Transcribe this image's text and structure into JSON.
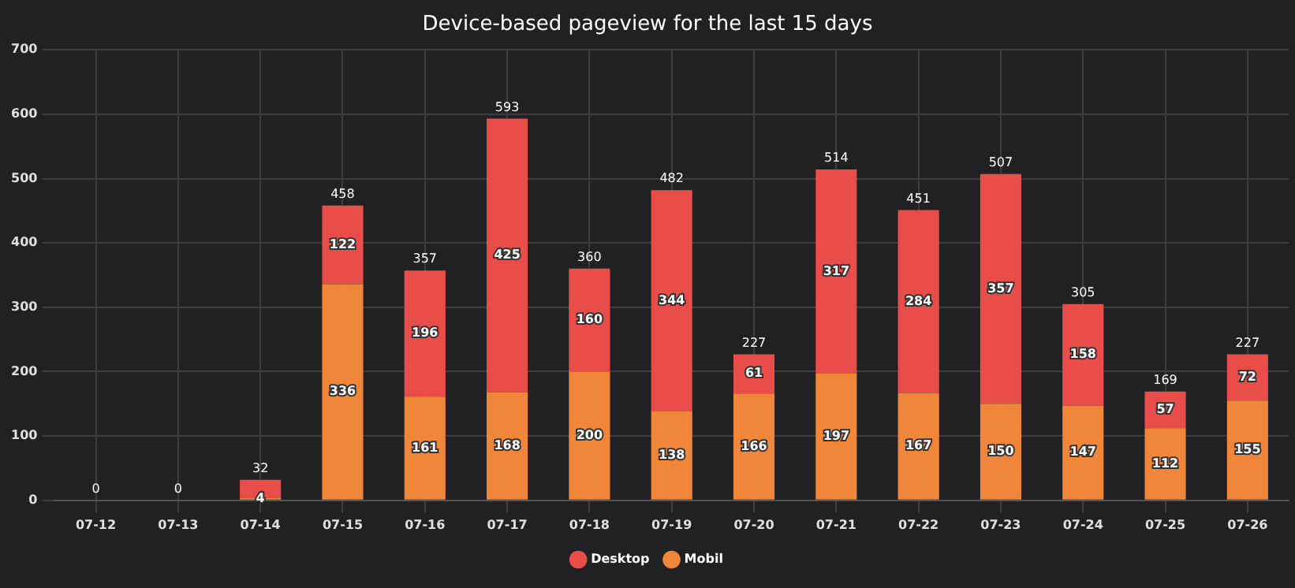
{
  "chart_data": {
    "type": "bar",
    "title": "Device-based pageview for the last 15 days",
    "stacked": true,
    "categories": [
      "07-12",
      "07-13",
      "07-14",
      "07-15",
      "07-16",
      "07-17",
      "07-18",
      "07-19",
      "07-20",
      "07-21",
      "07-22",
      "07-23",
      "07-24",
      "07-25",
      "07-26"
    ],
    "series": [
      {
        "name": "Mobil",
        "color": "#f0863a",
        "values": [
          0,
          0,
          4,
          336,
          161,
          168,
          200,
          138,
          166,
          197,
          167,
          150,
          147,
          112,
          155
        ],
        "value_labels": [
          null,
          null,
          "4",
          "336",
          "161",
          "168",
          "200",
          "138",
          "166",
          "197",
          "167",
          "150",
          "147",
          "112",
          "155"
        ]
      },
      {
        "name": "Desktop",
        "color": "#e84d4a",
        "values": [
          0,
          0,
          28,
          122,
          196,
          425,
          160,
          344,
          61,
          317,
          284,
          357,
          158,
          57,
          72
        ],
        "value_labels": [
          null,
          null,
          null,
          "122",
          "196",
          "425",
          "160",
          "344",
          "61",
          "317",
          "284",
          "357",
          "158",
          "57",
          "72"
        ]
      }
    ],
    "totals": [
      "0",
      "0",
      "32",
      "458",
      "357",
      "593",
      "360",
      "482",
      "227",
      "514",
      "451",
      "507",
      "305",
      "169",
      "227"
    ],
    "ylim": [
      0,
      700
    ],
    "yticks": [
      0,
      100,
      200,
      300,
      400,
      500,
      600,
      700
    ],
    "grid": true,
    "legend": "bottom"
  }
}
